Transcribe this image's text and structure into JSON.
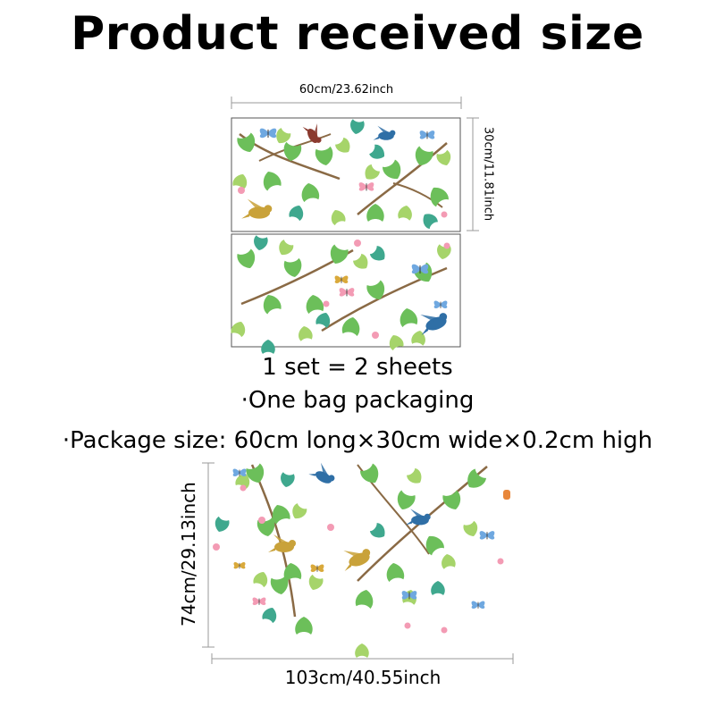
{
  "title": "Product received size",
  "sheet_width_label": "60cm/23.62inch",
  "sheet_height_label": "30cm/11.81inch",
  "info": {
    "sets": "1 set = 2 sheets",
    "packaging": "·One bag packaging",
    "package_size": "·Package size: 60cm long×30cm wide×0.2cm high"
  },
  "installed_height_label": "74cm/29.13inch",
  "installed_width_label": "103cm/40.55inch",
  "colors": {
    "leaf_light": "#a6d46a",
    "leaf_mid": "#6cbf5a",
    "leaf_teal": "#3fa88e",
    "branch": "#8a6a45",
    "pink": "#f39bb4",
    "blue": "#6fa8e0",
    "dim_line": "#9a9a9a"
  }
}
